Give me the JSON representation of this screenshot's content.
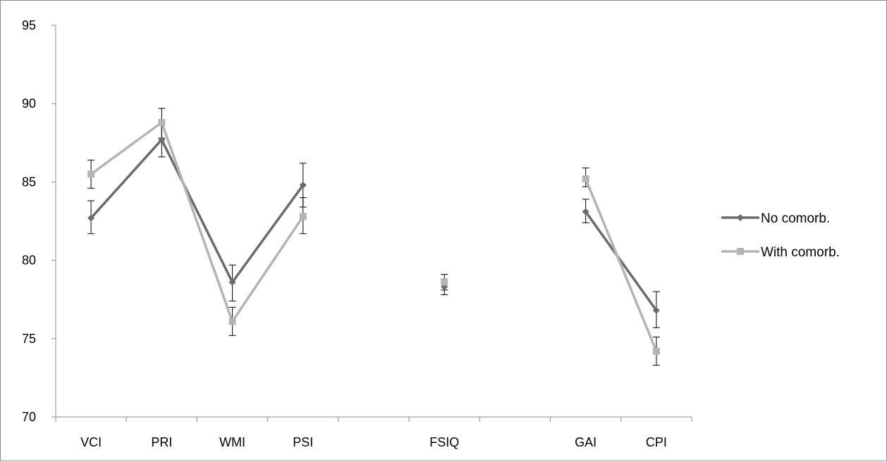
{
  "chart_data": {
    "type": "line",
    "categories": [
      "VCI",
      "PRI",
      "WMI",
      "PSI",
      "",
      "FSIQ",
      "",
      "GAI",
      "CPI"
    ],
    "ylim": [
      70,
      95
    ],
    "yticks": [
      "70",
      "75",
      "80",
      "85",
      "90",
      "95"
    ],
    "grid": false,
    "legend_position": "right",
    "series": [
      {
        "name": "No comorb.",
        "color": "#6b6b6b",
        "marker": "diamond",
        "values": [
          82.7,
          87.7,
          78.6,
          84.8,
          null,
          78.3,
          null,
          83.1,
          76.8
        ],
        "err_low": [
          81.7,
          86.6,
          77.4,
          83.4,
          null,
          77.8,
          null,
          82.4,
          75.7
        ],
        "err_high": [
          83.8,
          88.8,
          79.7,
          86.2,
          null,
          78.8,
          null,
          83.9,
          78.0
        ]
      },
      {
        "name": "With comorb.",
        "color": "#b4b4b4",
        "marker": "square",
        "values": [
          85.5,
          88.8,
          76.1,
          82.8,
          null,
          78.6,
          null,
          85.2,
          74.2
        ],
        "err_low": [
          84.6,
          87.8,
          75.2,
          81.7,
          null,
          78.1,
          null,
          84.7,
          73.3
        ],
        "err_high": [
          86.4,
          89.7,
          77.0,
          84.0,
          null,
          79.1,
          null,
          85.9,
          75.1
        ]
      }
    ]
  }
}
